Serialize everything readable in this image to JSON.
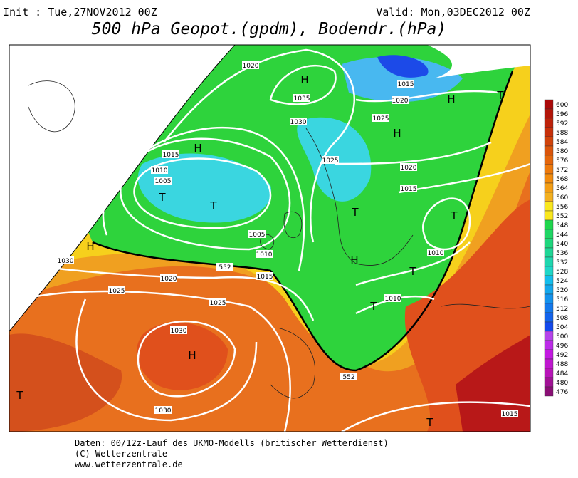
{
  "header": {
    "init": "Init : Tue,27NOV2012 00Z",
    "valid": "Valid: Mon,03DEC2012 00Z",
    "title": "500 hPa Geopot.(gpdm), Bodendr.(hPa)"
  },
  "map": {
    "labels": [
      "H",
      "1020",
      "1035",
      "1015",
      "1020",
      "H",
      "T",
      "1025",
      "H",
      "1030",
      "H",
      "1015",
      "1025",
      "1010",
      "1020",
      "1005",
      "T",
      "T",
      "1015",
      "T",
      "T",
      "1005",
      "H",
      "1010",
      "1010",
      "552",
      "1030",
      "1020",
      "1015",
      "H",
      "T",
      "1025",
      "1025",
      "1010",
      "T",
      "1030",
      "H",
      "552",
      "T",
      "1030",
      "T",
      "1015"
    ]
  },
  "colorbar": {
    "levels": [
      600,
      596,
      592,
      588,
      584,
      580,
      576,
      572,
      568,
      564,
      560,
      556,
      552,
      548,
      544,
      540,
      536,
      532,
      528,
      524,
      520,
      516,
      512,
      508,
      504,
      500,
      496,
      492,
      488,
      484,
      480,
      476
    ]
  },
  "footer": {
    "lines": [
      "Daten: 00/12z-Lauf des UKMO-Modells (britischer Wetterdienst)",
      "(C) Wetterzentrale",
      "www.wetterzentrale.de"
    ]
  }
}
